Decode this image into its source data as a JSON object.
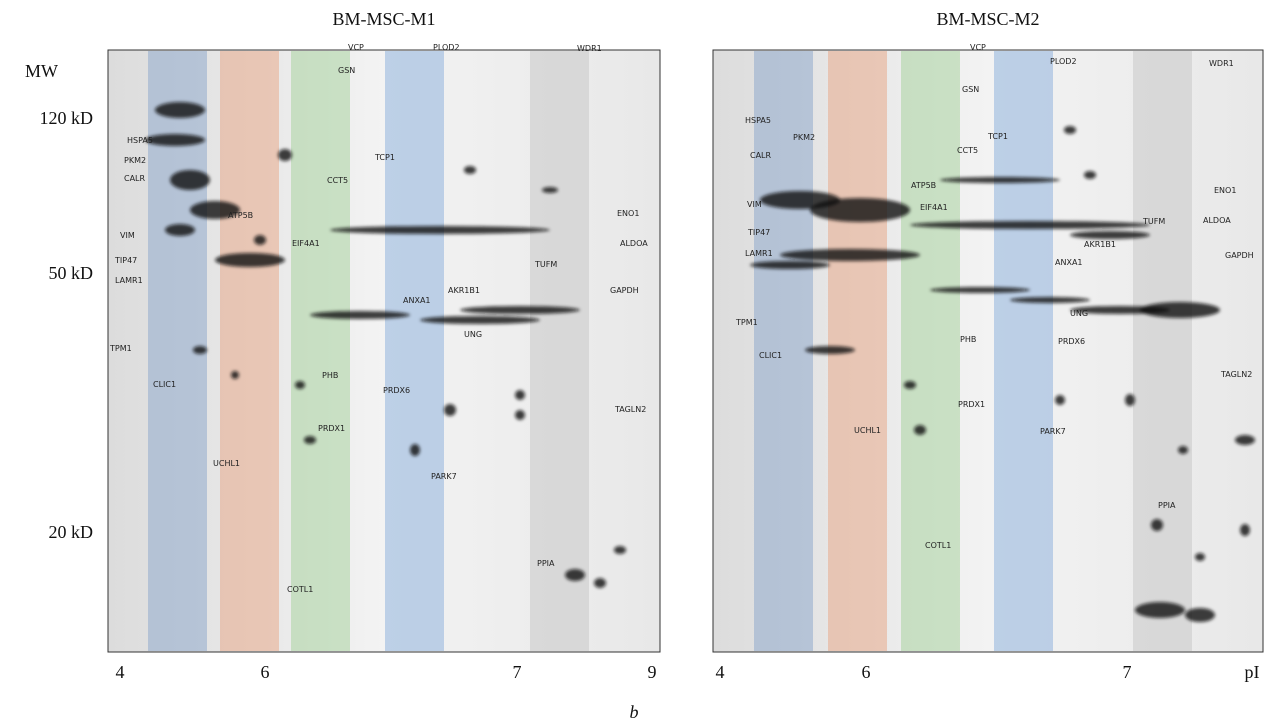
{
  "figure_label": "b",
  "y_axis": {
    "title": "MW",
    "ticks": [
      "120 kD",
      "50 kD",
      "20 kD"
    ]
  },
  "panels": [
    {
      "title": "BM-MSC-M1",
      "x_ticks": [
        "4",
        "6",
        "7",
        "9"
      ],
      "proteins": [
        "VCP",
        "PLOD2",
        "WDR1",
        "GSN",
        "HSPA5",
        "TCP1",
        "PKM2",
        "CALR",
        "CCT5",
        "ATP5B",
        "ENO1",
        "VIM",
        "EIF4A1",
        "ALDOA",
        "TUFM",
        "TIP47",
        "LAMR1",
        "AKR1B1",
        "ANXA1",
        "GAPDH",
        "UNG",
        "TPM1",
        "PHB",
        "CLIC1",
        "PRDX6",
        "TAGLN2",
        "PRDX1",
        "UCHL1",
        "PARK7",
        "PPIA",
        "COTL1"
      ]
    },
    {
      "title": "BM-MSC-M2",
      "x_ticks": [
        "4",
        "6",
        "7",
        "pI"
      ],
      "proteins": [
        "VCP",
        "PLOD2",
        "WDR1",
        "GSN",
        "HSPA5",
        "PKM2",
        "TCP1",
        "CALR",
        "CCT5",
        "ATP5B",
        "ENO1",
        "VIM",
        "EIF4A1",
        "ALDOA",
        "TUFM",
        "TIP47",
        "GAPDH",
        "AKR1B1",
        "LAMR1",
        "ANXA1",
        "UNG",
        "TPM1",
        "PHB",
        "PRDX6",
        "CLIC1",
        "TAGLN2",
        "PRDX1",
        "UCHL1",
        "PARK7",
        "PPIA",
        "COTL1"
      ]
    }
  ]
}
